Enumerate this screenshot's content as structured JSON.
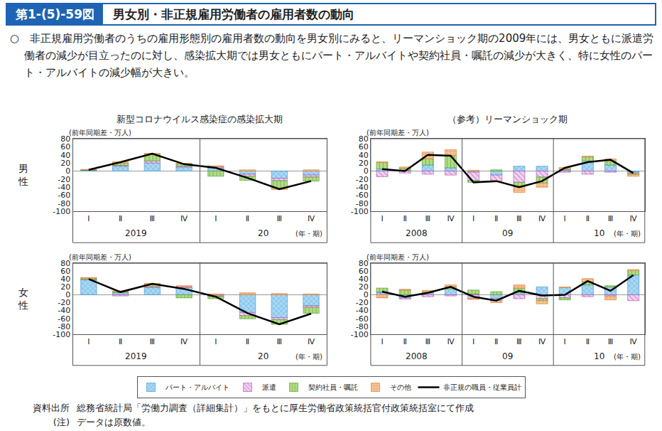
{
  "header": {
    "number": "第1-(5)-59図",
    "title": "男女別・非正規雇用労働者の雇用者数の動向"
  },
  "summary": "○　非正規雇用労働者のうちの雇用形態別の雇用者数の動向を男女別にみると、リーマンショック期の2009年には、男女ともに派遣労働者の減少が目立ったのに対し、感染拡大期では男女ともにパート・アルバイトや契約社員・嘱託の減少が大きく、特に女性のパート・アルバイトの減少幅が大きい。",
  "row_labels": [
    "男性",
    "女性"
  ],
  "chart_data": [
    {
      "type": "bar",
      "stacked": true,
      "grid": false,
      "title": "新型コロナウイルス感染症の感染拡大期",
      "y_label": "(前年同期差・万人)",
      "x_label": "(年・期)",
      "categories": [
        [
          "2019",
          "Ⅰ"
        ],
        [
          "2019",
          "Ⅱ"
        ],
        [
          "2019",
          "Ⅲ"
        ],
        [
          "2019",
          "Ⅳ"
        ],
        [
          "20",
          "Ⅰ"
        ],
        [
          "20",
          "Ⅱ"
        ],
        [
          "20",
          "Ⅲ"
        ],
        [
          "20",
          "Ⅳ"
        ]
      ],
      "ylim": [
        -100,
        80
      ],
      "yticks": [
        -100,
        -80,
        -60,
        -40,
        -20,
        0,
        20,
        40,
        60,
        80
      ],
      "series": [
        {
          "name": "パート・アルバイト",
          "color": "#a9d8f3",
          "values": [
            2,
            12,
            20,
            10,
            8,
            -8,
            -18,
            -10
          ]
        },
        {
          "name": "派遣",
          "color": "#f0d2f0",
          "values": [
            0,
            2,
            5,
            2,
            3,
            -5,
            -6,
            -5
          ]
        },
        {
          "name": "契約社員・嘱託",
          "color": "#b3dc86",
          "values": [
            1,
            6,
            16,
            6,
            -13,
            -10,
            -18,
            -10
          ]
        },
        {
          "name": "その他",
          "color": "#f7c49a",
          "values": [
            1,
            3,
            3,
            1,
            2,
            3,
            -4,
            3
          ]
        },
        {
          "name": "非正規の職員・従業員計",
          "color": "#000000",
          "type": "line",
          "values": [
            3,
            22,
            43,
            17,
            8,
            -17,
            -45,
            -25
          ]
        }
      ]
    },
    {
      "type": "bar",
      "stacked": true,
      "grid": false,
      "title": "（参考）リーマンショック期",
      "y_label": "(前年同期差・万人)",
      "x_label": "(年・期)",
      "categories": [
        [
          "2008",
          "Ⅰ"
        ],
        [
          "2008",
          "Ⅱ"
        ],
        [
          "2008",
          "Ⅲ"
        ],
        [
          "2008",
          "Ⅳ"
        ],
        [
          "09",
          "Ⅰ"
        ],
        [
          "09",
          "Ⅱ"
        ],
        [
          "09",
          "Ⅲ"
        ],
        [
          "09",
          "Ⅳ"
        ],
        [
          "10",
          "Ⅰ"
        ],
        [
          "10",
          "Ⅱ"
        ],
        [
          "10",
          "Ⅲ"
        ],
        [
          "10",
          "Ⅳ"
        ]
      ],
      "ylim": [
        -100,
        80
      ],
      "yticks": [
        -100,
        -80,
        -60,
        -40,
        -20,
        0,
        20,
        40,
        60,
        80
      ],
      "series": [
        {
          "name": "パート・アルバイト",
          "color": "#a9d8f3",
          "values": [
            5,
            2,
            15,
            8,
            -3,
            -10,
            12,
            12,
            3,
            25,
            15,
            -3
          ]
        },
        {
          "name": "派遣",
          "color": "#f0d2f0",
          "values": [
            -14,
            -5,
            -8,
            -10,
            -20,
            -15,
            -28,
            -15,
            -3,
            -8,
            -3,
            -3
          ]
        },
        {
          "name": "契約社員・嘱託",
          "color": "#b3dc86",
          "values": [
            16,
            5,
            15,
            30,
            -5,
            3,
            -10,
            -15,
            2,
            10,
            10,
            -3
          ]
        },
        {
          "name": "その他",
          "color": "#f7c49a",
          "values": [
            2,
            3,
            17,
            15,
            2,
            -2,
            -15,
            -10,
            4,
            2,
            5,
            -4
          ]
        },
        {
          "name": "非正規の職員・従業員計",
          "color": "#000000",
          "type": "line",
          "values": [
            5,
            0,
            40,
            38,
            -28,
            -25,
            -40,
            -25,
            8,
            22,
            28,
            -5
          ]
        }
      ]
    },
    {
      "type": "bar",
      "stacked": true,
      "grid": false,
      "y_label": "(前年同期差・万人)",
      "x_label": "(年・期)",
      "categories": [
        [
          "2019",
          "Ⅰ"
        ],
        [
          "2019",
          "Ⅱ"
        ],
        [
          "2019",
          "Ⅲ"
        ],
        [
          "2019",
          "Ⅳ"
        ],
        [
          "20",
          "Ⅰ"
        ],
        [
          "20",
          "Ⅱ"
        ],
        [
          "20",
          "Ⅲ"
        ],
        [
          "20",
          "Ⅳ"
        ]
      ],
      "ylim": [
        -100,
        80
      ],
      "yticks": [
        -100,
        -80,
        -60,
        -40,
        -20,
        0,
        20,
        40,
        60,
        80
      ],
      "series": [
        {
          "name": "パート・アルバイト",
          "color": "#a9d8f3",
          "values": [
            38,
            5,
            18,
            18,
            -3,
            -45,
            -58,
            -28
          ]
        },
        {
          "name": "派遣",
          "color": "#f0d2f0",
          "values": [
            1,
            -3,
            3,
            3,
            -1,
            -8,
            -5,
            -4
          ]
        },
        {
          "name": "契約社員・嘱託",
          "color": "#b3dc86",
          "values": [
            3,
            3,
            5,
            -8,
            -6,
            -8,
            -12,
            -15
          ]
        },
        {
          "name": "その他",
          "color": "#f7c49a",
          "values": [
            2,
            2,
            3,
            2,
            2,
            5,
            3,
            2
          ]
        },
        {
          "name": "非正規の職員・従業員計",
          "color": "#000000",
          "type": "line",
          "values": [
            40,
            7,
            28,
            15,
            -5,
            -47,
            -75,
            -48
          ]
        }
      ]
    },
    {
      "type": "bar",
      "stacked": true,
      "grid": false,
      "y_label": "(前年同期差・万人)",
      "x_label": "(年・期)",
      "categories": [
        [
          "2008",
          "Ⅰ"
        ],
        [
          "2008",
          "Ⅱ"
        ],
        [
          "2008",
          "Ⅲ"
        ],
        [
          "2008",
          "Ⅳ"
        ],
        [
          "09",
          "Ⅰ"
        ],
        [
          "09",
          "Ⅱ"
        ],
        [
          "09",
          "Ⅲ"
        ],
        [
          "09",
          "Ⅳ"
        ],
        [
          "10",
          "Ⅰ"
        ],
        [
          "10",
          "Ⅱ"
        ],
        [
          "10",
          "Ⅲ"
        ],
        [
          "10",
          "Ⅳ"
        ]
      ],
      "ylim": [
        -100,
        80
      ],
      "yticks": [
        -100,
        -80,
        -60,
        -40,
        -20,
        0,
        20,
        40,
        60,
        80
      ],
      "series": [
        {
          "name": "パート・アルバイト",
          "color": "#a9d8f3",
          "values": [
            5,
            -8,
            5,
            15,
            2,
            -10,
            5,
            20,
            18,
            25,
            20,
            50
          ]
        },
        {
          "name": "派遣",
          "color": "#f0d2f0",
          "values": [
            2,
            -3,
            -5,
            -3,
            -10,
            -5,
            -10,
            -10,
            -8,
            -5,
            -3,
            -15
          ]
        },
        {
          "name": "契約社員・嘱託",
          "color": "#b3dc86",
          "values": [
            10,
            12,
            3,
            5,
            10,
            8,
            12,
            -5,
            -5,
            8,
            3,
            12
          ]
        },
        {
          "name": "その他",
          "color": "#f7c49a",
          "values": [
            -8,
            2,
            3,
            5,
            -2,
            -5,
            8,
            -8,
            2,
            8,
            -10,
            2
          ]
        },
        {
          "name": "非正規の職員・従業員計",
          "color": "#000000",
          "type": "line",
          "values": [
            8,
            -5,
            5,
            20,
            -5,
            -15,
            10,
            -2,
            0,
            35,
            10,
            50
          ]
        }
      ]
    }
  ],
  "source": {
    "label": "資料出所",
    "text": "総務省統計局「労働力調査（詳細集計）」をもとに厚生労働省政策統括官付政策統括室にて作成"
  },
  "note": {
    "label": "(注)",
    "text": "データは原数値。"
  }
}
